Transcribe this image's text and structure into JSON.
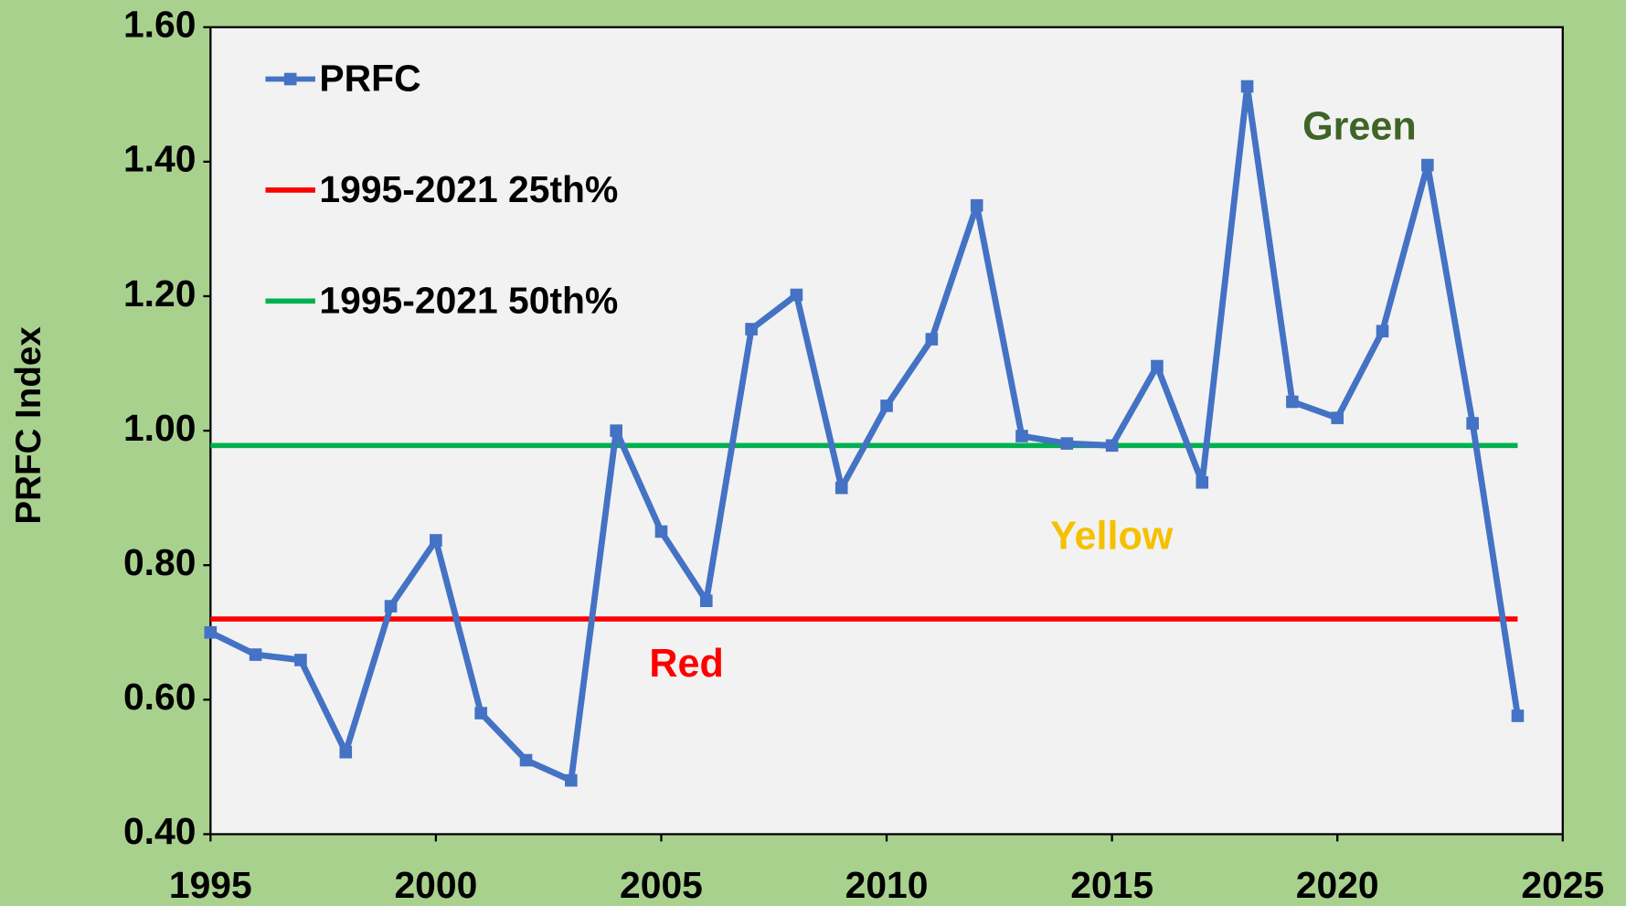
{
  "chart_data": {
    "type": "line",
    "y_label": "PRFC Index",
    "x": [
      1995,
      1996,
      1997,
      1998,
      1999,
      2000,
      2001,
      2002,
      2003,
      2004,
      2005,
      2006,
      2007,
      2008,
      2009,
      2010,
      2011,
      2012,
      2013,
      2014,
      2015,
      2016,
      2017,
      2018,
      2019,
      2020,
      2021,
      2022,
      2023,
      2024
    ],
    "series": [
      {
        "name": "PRFC",
        "color": "#4472c4",
        "values": [
          0.7,
          0.667,
          0.659,
          0.522,
          0.739,
          0.837,
          0.58,
          0.51,
          0.48,
          1.0,
          0.85,
          0.747,
          1.151,
          1.202,
          0.915,
          1.037,
          1.136,
          1.335,
          0.992,
          0.981,
          0.978,
          1.096,
          0.923,
          1.512,
          1.043,
          1.019,
          1.148,
          1.395,
          1.011,
          0.576
        ]
      }
    ],
    "reference_lines": [
      {
        "name": "1995-2021 25th%",
        "color": "#ff0000",
        "value": 0.72
      },
      {
        "name": "1995-2021 50th%",
        "color": "#00b050",
        "value": 0.978
      }
    ],
    "annotations": [
      {
        "text": "Green",
        "color": "#3f6427"
      },
      {
        "text": "Yellow",
        "color": "#f5c000"
      },
      {
        "text": "Red",
        "color": "#ff0000"
      }
    ],
    "xlim": [
      1995,
      2025
    ],
    "xticks": [
      1995,
      2000,
      2005,
      2010,
      2015,
      2020,
      2025
    ],
    "ylim": [
      0.4,
      1.6
    ],
    "yticks": [
      {
        "value": 0.4,
        "label": "0.40"
      },
      {
        "value": 0.6,
        "label": "0.60"
      },
      {
        "value": 0.8,
        "label": "0.80"
      },
      {
        "value": 1.0,
        "label": "1.00"
      },
      {
        "value": 1.2,
        "label": "1.20"
      },
      {
        "value": 1.4,
        "label": "1.40"
      },
      {
        "value": 1.6,
        "label": "1.60"
      }
    ],
    "grid": false,
    "legend": "upper left"
  }
}
